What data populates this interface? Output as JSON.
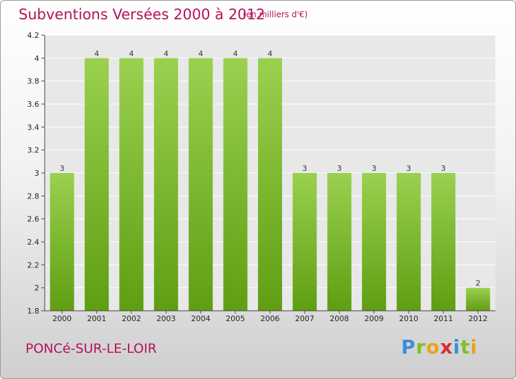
{
  "title": "Subventions Versées 2000 à 2012",
  "subtitle": "(en milliers d'€)",
  "commune": "PONCé-SUR-LE-LOIR",
  "brand": {
    "letters": [
      "P",
      "r",
      "o",
      "x",
      "i",
      "t",
      "i"
    ],
    "colors": [
      "#3a8fd6",
      "#7fbf2a",
      "#e8a21c",
      "#d62f2f",
      "#3a8fd6",
      "#7fbf2a",
      "#e8a21c"
    ]
  },
  "colors": {
    "bar_top": "#9ad14f",
    "bar_bottom": "#5f9e12",
    "accent": "#b5125a"
  },
  "chart_data": {
    "type": "bar",
    "categories": [
      "2000",
      "2001",
      "2002",
      "2003",
      "2004",
      "2005",
      "2006",
      "2007",
      "2008",
      "2009",
      "2010",
      "2011",
      "2012"
    ],
    "values": [
      3,
      4,
      4,
      4,
      4,
      4,
      4,
      3,
      3,
      3,
      3,
      3,
      2
    ],
    "data_labels": [
      "3",
      "4",
      "4",
      "4",
      "4",
      "4",
      "4",
      "3",
      "3",
      "3",
      "3",
      "3",
      "2"
    ],
    "title": "Subventions Versées 2000 à 2012",
    "subtitle": "(en milliers d'€)",
    "ylim": [
      1.8,
      4.2
    ],
    "yticks": [
      1.8,
      2,
      2.2,
      2.4,
      2.6,
      2.8,
      3,
      3.2,
      3.4,
      3.6,
      3.8,
      4,
      4.2
    ],
    "ytick_labels": [
      "1.8",
      "2",
      "2.2",
      "2.4",
      "2.6",
      "2.8",
      "3",
      "3.2",
      "3.4",
      "3.6",
      "3.8",
      "4",
      "4.2"
    ],
    "grid": true
  }
}
